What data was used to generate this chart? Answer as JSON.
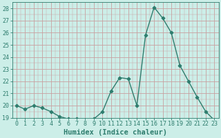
{
  "x": [
    0,
    1,
    2,
    3,
    4,
    5,
    6,
    7,
    8,
    9,
    10,
    11,
    12,
    13,
    14,
    15,
    16,
    17,
    18,
    19,
    20,
    21,
    22,
    23
  ],
  "y": [
    20.0,
    19.7,
    20.0,
    19.8,
    19.5,
    19.1,
    18.9,
    18.9,
    18.8,
    18.9,
    19.5,
    21.2,
    22.3,
    22.2,
    20.0,
    25.8,
    28.1,
    27.2,
    26.0,
    23.3,
    22.0,
    20.7,
    19.5,
    18.8
  ],
  "line_color": "#2e7d6e",
  "marker": "D",
  "marker_size": 2.5,
  "bg_color": "#cceee8",
  "grid_color": "#c8a0a0",
  "xlabel": "Humidex (Indice chaleur)",
  "ylim": [
    19,
    28.5
  ],
  "xlim": [
    -0.5,
    23.5
  ],
  "yticks": [
    19,
    20,
    21,
    22,
    23,
    24,
    25,
    26,
    27,
    28
  ],
  "xtick_labels": [
    "0",
    "1",
    "2",
    "3",
    "4",
    "5",
    "6",
    "7",
    "8",
    "9",
    "10",
    "11",
    "12",
    "13",
    "14",
    "15",
    "16",
    "17",
    "18",
    "19",
    "20",
    "21",
    "22",
    "23"
  ],
  "axis_fontsize": 6,
  "label_fontsize": 7.5
}
